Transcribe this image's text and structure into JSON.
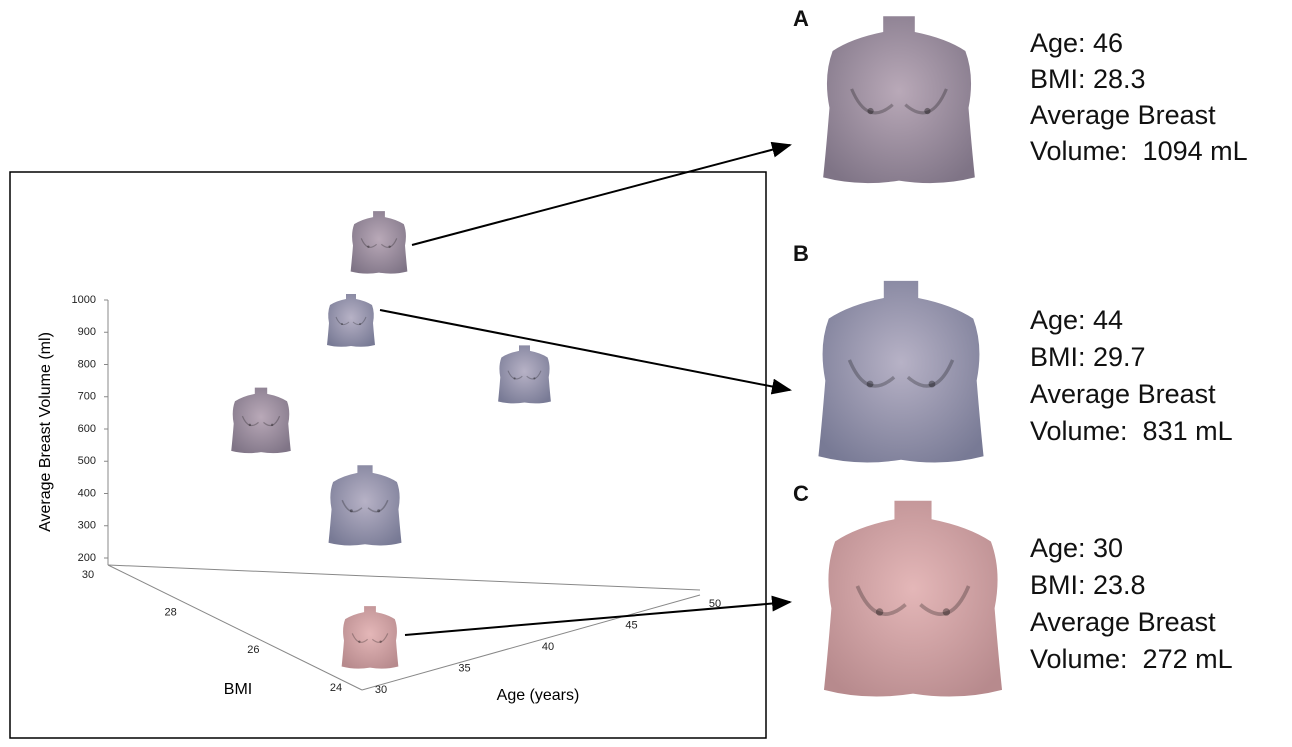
{
  "plot": {
    "y_label": "Average Breast Volume (ml)",
    "x_label": "Age (years)",
    "z_label": "BMI",
    "yticks": [
      "1000",
      "900",
      "800",
      "700",
      "600",
      "500",
      "400",
      "300",
      "200"
    ],
    "xticks": [
      "30",
      "35",
      "40",
      "45",
      "50"
    ],
    "zticks": [
      "30",
      "28",
      "26",
      "24"
    ]
  },
  "panels": [
    {
      "letter": "A",
      "lines": [
        "Age: 46",
        "BMI: 28.3",
        "Average Breast",
        "Volume:  1094 mL"
      ]
    },
    {
      "letter": "B",
      "lines": [
        "Age: 44",
        "BMI: 29.7",
        "Average Breast",
        "Volume:  831 mL"
      ]
    },
    {
      "letter": "C",
      "lines": [
        "Age: 30",
        "BMI: 23.8",
        "Average Breast",
        "Volume:  272 mL"
      ]
    }
  ]
}
